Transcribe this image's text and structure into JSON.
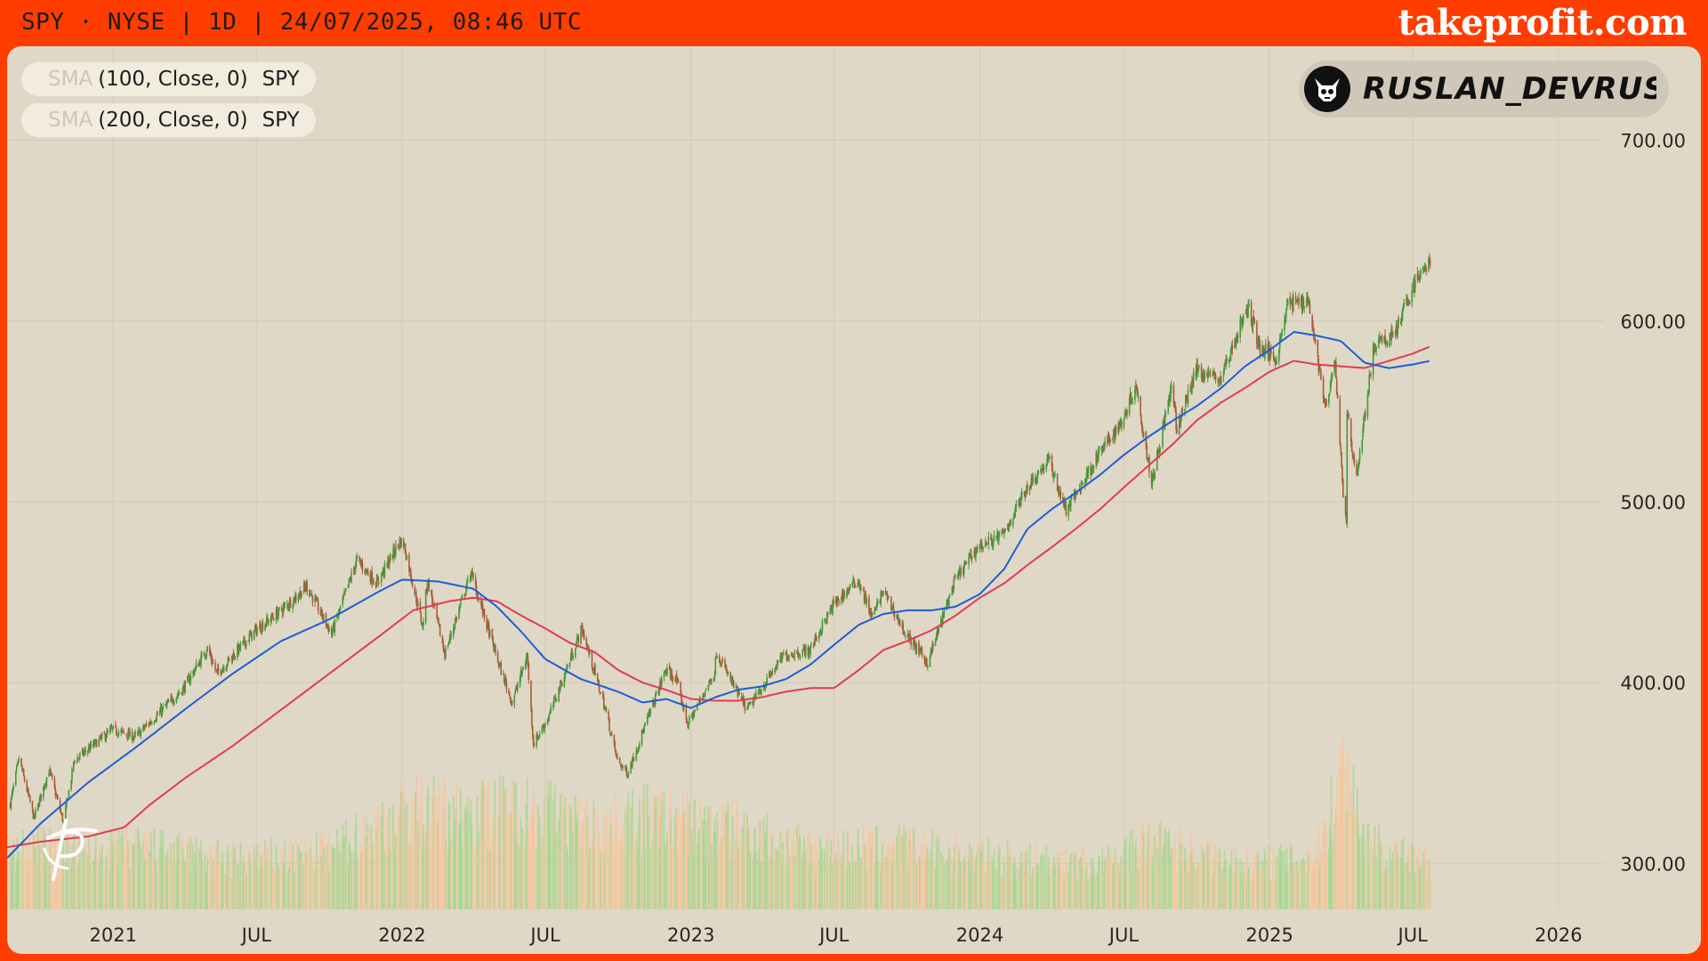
{
  "header": {
    "info": "SPY · NYSE | 1D | 24/07/2025, 08:46 UTC",
    "brand": "takeprofit.com"
  },
  "legend": [
    {
      "indicator": "SMA",
      "args": "(100, Close, 0)",
      "symbol": "SPY"
    },
    {
      "indicator": "SMA",
      "args": "(200, Close, 0)",
      "symbol": "SPY"
    }
  ],
  "author": {
    "name": "RUSLAN_DEVRUSLA...",
    "avatar_icon": "bull-skull-icon"
  },
  "watermark_icon": "takeprofit-logo-icon",
  "colors": {
    "background": "#e0d8c6",
    "frame": "#ff3d00",
    "candle_up": "#3f9b3a",
    "candle_down": "#a85c38",
    "volume_up": "#a7d690",
    "volume_down": "#f7c49c",
    "sma100": "#1a5fd6",
    "sma200": "#e23b53",
    "grid": "#d2cab7"
  },
  "chart_data": {
    "type": "line",
    "x_axis": {
      "tick_labels": [
        "2021",
        "JUL",
        "2022",
        "JUL",
        "2023",
        "JUL",
        "2024",
        "JUL",
        "2025",
        "JUL",
        "2026"
      ],
      "tick_dates": [
        "2021-01-01",
        "2021-07-01",
        "2022-01-01",
        "2022-07-01",
        "2023-01-01",
        "2023-07-01",
        "2024-01-01",
        "2024-07-01",
        "2025-01-01",
        "2025-07-01",
        "2026-01-01"
      ],
      "range": [
        "2020-08-20",
        "2026-06-30"
      ]
    },
    "y_axis": {
      "tick_labels": [
        "300.00",
        "400.00",
        "500.00",
        "600.00",
        "700.00"
      ],
      "tick_values": [
        300,
        400,
        500,
        600,
        700
      ],
      "range": [
        250,
        752
      ]
    },
    "grid": true,
    "series": [
      {
        "name": "SPY",
        "kind": "candlestick",
        "key_points": [
          [
            "2020-08-24",
            333
          ],
          [
            "2020-09-04",
            358
          ],
          [
            "2020-09-23",
            325
          ],
          [
            "2020-10-12",
            352
          ],
          [
            "2020-10-30",
            323
          ],
          [
            "2020-11-13",
            357
          ],
          [
            "2020-12-31",
            374
          ],
          [
            "2021-01-29",
            370
          ],
          [
            "2021-03-31",
            397
          ],
          [
            "2021-04-30",
            419
          ],
          [
            "2021-05-12",
            405
          ],
          [
            "2021-06-30",
            429
          ],
          [
            "2021-07-30",
            439
          ],
          [
            "2021-08-31",
            452
          ],
          [
            "2021-09-02",
            454
          ],
          [
            "2021-10-04",
            427
          ],
          [
            "2021-11-05",
            468
          ],
          [
            "2021-11-30",
            455
          ],
          [
            "2021-12-29",
            478
          ],
          [
            "2022-01-03",
            477
          ],
          [
            "2022-01-27",
            431
          ],
          [
            "2022-02-02",
            457
          ],
          [
            "2022-02-24",
            416
          ],
          [
            "2022-03-29",
            461
          ],
          [
            "2022-05-02",
            412
          ],
          [
            "2022-05-20",
            389
          ],
          [
            "2022-06-08",
            415
          ],
          [
            "2022-06-16",
            366
          ],
          [
            "2022-07-05",
            381
          ],
          [
            "2022-08-16",
            430
          ],
          [
            "2022-09-15",
            385
          ],
          [
            "2022-09-30",
            357
          ],
          [
            "2022-10-13",
            350
          ],
          [
            "2022-11-30",
            407
          ],
          [
            "2022-12-13",
            402
          ],
          [
            "2022-12-28",
            377
          ],
          [
            "2023-01-31",
            406
          ],
          [
            "2023-02-02",
            417
          ],
          [
            "2023-03-01",
            394
          ],
          [
            "2023-03-13",
            385
          ],
          [
            "2023-04-28",
            415
          ],
          [
            "2023-05-31",
            418
          ],
          [
            "2023-06-30",
            443
          ],
          [
            "2023-07-31",
            457
          ],
          [
            "2023-08-18",
            436
          ],
          [
            "2023-09-01",
            451
          ],
          [
            "2023-09-29",
            427
          ],
          [
            "2023-10-27",
            411
          ],
          [
            "2023-11-30",
            456
          ],
          [
            "2023-12-29",
            475
          ],
          [
            "2024-01-31",
            482
          ],
          [
            "2024-02-29",
            508
          ],
          [
            "2024-03-28",
            523
          ],
          [
            "2024-04-19",
            495
          ],
          [
            "2024-05-31",
            527
          ],
          [
            "2024-06-28",
            544
          ],
          [
            "2024-07-16",
            565
          ],
          [
            "2024-08-05",
            511
          ],
          [
            "2024-08-30",
            563
          ],
          [
            "2024-09-06",
            540
          ],
          [
            "2024-09-30",
            573
          ],
          [
            "2024-10-31",
            568
          ],
          [
            "2024-11-29",
            602
          ],
          [
            "2024-12-06",
            607
          ],
          [
            "2024-12-20",
            585
          ],
          [
            "2025-01-10",
            580
          ],
          [
            "2025-01-23",
            609
          ],
          [
            "2025-02-19",
            612
          ],
          [
            "2025-03-13",
            551
          ],
          [
            "2025-03-25",
            577
          ],
          [
            "2025-04-04",
            505
          ],
          [
            "2025-04-08",
            490
          ],
          [
            "2025-04-09",
            548
          ],
          [
            "2025-04-21",
            514
          ],
          [
            "2025-05-13",
            586
          ],
          [
            "2025-05-30",
            590
          ],
          [
            "2025-06-13",
            598
          ],
          [
            "2025-06-30",
            618
          ],
          [
            "2025-07-23",
            634
          ]
        ]
      },
      {
        "name": "SMA (100, Close, 0)",
        "key_points": [
          [
            "2020-08-20",
            303
          ],
          [
            "2020-10-01",
            322
          ],
          [
            "2020-12-01",
            345
          ],
          [
            "2021-02-01",
            365
          ],
          [
            "2021-04-01",
            385
          ],
          [
            "2021-06-01",
            405
          ],
          [
            "2021-08-01",
            423
          ],
          [
            "2021-10-01",
            435
          ],
          [
            "2021-12-01",
            450
          ],
          [
            "2022-01-01",
            457
          ],
          [
            "2022-02-15",
            456
          ],
          [
            "2022-04-01",
            452
          ],
          [
            "2022-05-01",
            442
          ],
          [
            "2022-06-01",
            428
          ],
          [
            "2022-07-01",
            413
          ],
          [
            "2022-08-15",
            402
          ],
          [
            "2022-10-01",
            395
          ],
          [
            "2022-11-01",
            389
          ],
          [
            "2022-12-01",
            391
          ],
          [
            "2023-01-01",
            386
          ],
          [
            "2023-02-01",
            392
          ],
          [
            "2023-03-01",
            396
          ],
          [
            "2023-04-01",
            398
          ],
          [
            "2023-05-01",
            402
          ],
          [
            "2023-06-01",
            410
          ],
          [
            "2023-07-01",
            421
          ],
          [
            "2023-08-01",
            432
          ],
          [
            "2023-09-01",
            438
          ],
          [
            "2023-10-01",
            440
          ],
          [
            "2023-11-01",
            440
          ],
          [
            "2023-12-01",
            442
          ],
          [
            "2024-01-01",
            449
          ],
          [
            "2024-02-01",
            463
          ],
          [
            "2024-03-01",
            485
          ],
          [
            "2024-04-01",
            496
          ],
          [
            "2024-05-01",
            505
          ],
          [
            "2024-06-01",
            515
          ],
          [
            "2024-07-01",
            526
          ],
          [
            "2024-08-01",
            536
          ],
          [
            "2024-09-01",
            545
          ],
          [
            "2024-10-01",
            553
          ],
          [
            "2024-11-01",
            563
          ],
          [
            "2024-12-01",
            575
          ],
          [
            "2025-01-01",
            584
          ],
          [
            "2025-02-01",
            594
          ],
          [
            "2025-03-01",
            592
          ],
          [
            "2025-04-01",
            589
          ],
          [
            "2025-05-01",
            577
          ],
          [
            "2025-06-01",
            574
          ],
          [
            "2025-07-01",
            576
          ],
          [
            "2025-07-23",
            578
          ]
        ]
      },
      {
        "name": "SMA (200, Close, 0)",
        "key_points": [
          [
            "2020-08-20",
            309
          ],
          [
            "2020-10-01",
            312
          ],
          [
            "2020-12-01",
            315
          ],
          [
            "2021-01-15",
            320
          ],
          [
            "2021-02-15",
            332
          ],
          [
            "2021-04-01",
            347
          ],
          [
            "2021-06-01",
            365
          ],
          [
            "2021-08-01",
            385
          ],
          [
            "2021-10-01",
            405
          ],
          [
            "2021-12-01",
            425
          ],
          [
            "2022-01-15",
            440
          ],
          [
            "2022-03-01",
            445
          ],
          [
            "2022-04-01",
            447
          ],
          [
            "2022-05-01",
            445
          ],
          [
            "2022-06-01",
            437
          ],
          [
            "2022-07-01",
            430
          ],
          [
            "2022-08-01",
            422
          ],
          [
            "2022-09-01",
            417
          ],
          [
            "2022-10-01",
            407
          ],
          [
            "2022-11-01",
            400
          ],
          [
            "2022-12-01",
            396
          ],
          [
            "2023-01-01",
            391
          ],
          [
            "2023-02-01",
            390
          ],
          [
            "2023-03-01",
            390
          ],
          [
            "2023-04-01",
            392
          ],
          [
            "2023-05-01",
            395
          ],
          [
            "2023-06-01",
            397
          ],
          [
            "2023-07-01",
            397
          ],
          [
            "2023-08-01",
            407
          ],
          [
            "2023-09-01",
            418
          ],
          [
            "2023-10-01",
            423
          ],
          [
            "2023-11-01",
            429
          ],
          [
            "2023-12-01",
            437
          ],
          [
            "2024-01-01",
            447
          ],
          [
            "2024-02-01",
            455
          ],
          [
            "2024-03-01",
            465
          ],
          [
            "2024-04-01",
            475
          ],
          [
            "2024-05-01",
            485
          ],
          [
            "2024-06-01",
            496
          ],
          [
            "2024-07-01",
            508
          ],
          [
            "2024-08-01",
            520
          ],
          [
            "2024-09-01",
            532
          ],
          [
            "2024-10-01",
            545
          ],
          [
            "2024-11-01",
            555
          ],
          [
            "2024-12-01",
            563
          ],
          [
            "2025-01-01",
            572
          ],
          [
            "2025-02-01",
            578
          ],
          [
            "2025-03-01",
            576
          ],
          [
            "2025-04-01",
            575
          ],
          [
            "2025-05-01",
            574
          ],
          [
            "2025-06-01",
            578
          ],
          [
            "2025-07-01",
            582
          ],
          [
            "2025-07-23",
            586
          ]
        ]
      },
      {
        "name": "Volume",
        "kind": "volume",
        "scale_max": 100,
        "key_points": [
          [
            "2020-08-20",
            38
          ],
          [
            "2020-10-01",
            42
          ],
          [
            "2020-12-01",
            38
          ],
          [
            "2021-02-01",
            42
          ],
          [
            "2021-06-01",
            33
          ],
          [
            "2021-10-01",
            38
          ],
          [
            "2022-01-15",
            68
          ],
          [
            "2022-03-01",
            65
          ],
          [
            "2022-06-15",
            68
          ],
          [
            "2022-09-01",
            55
          ],
          [
            "2022-11-01",
            62
          ],
          [
            "2023-03-01",
            54
          ],
          [
            "2023-06-01",
            40
          ],
          [
            "2023-10-01",
            42
          ],
          [
            "2024-01-01",
            35
          ],
          [
            "2024-06-01",
            30
          ],
          [
            "2024-08-05",
            45
          ],
          [
            "2024-12-01",
            30
          ],
          [
            "2025-03-01",
            36
          ],
          [
            "2025-04-07",
            100
          ],
          [
            "2025-05-01",
            50
          ],
          [
            "2025-06-01",
            38
          ],
          [
            "2025-07-23",
            30
          ]
        ]
      }
    ]
  }
}
